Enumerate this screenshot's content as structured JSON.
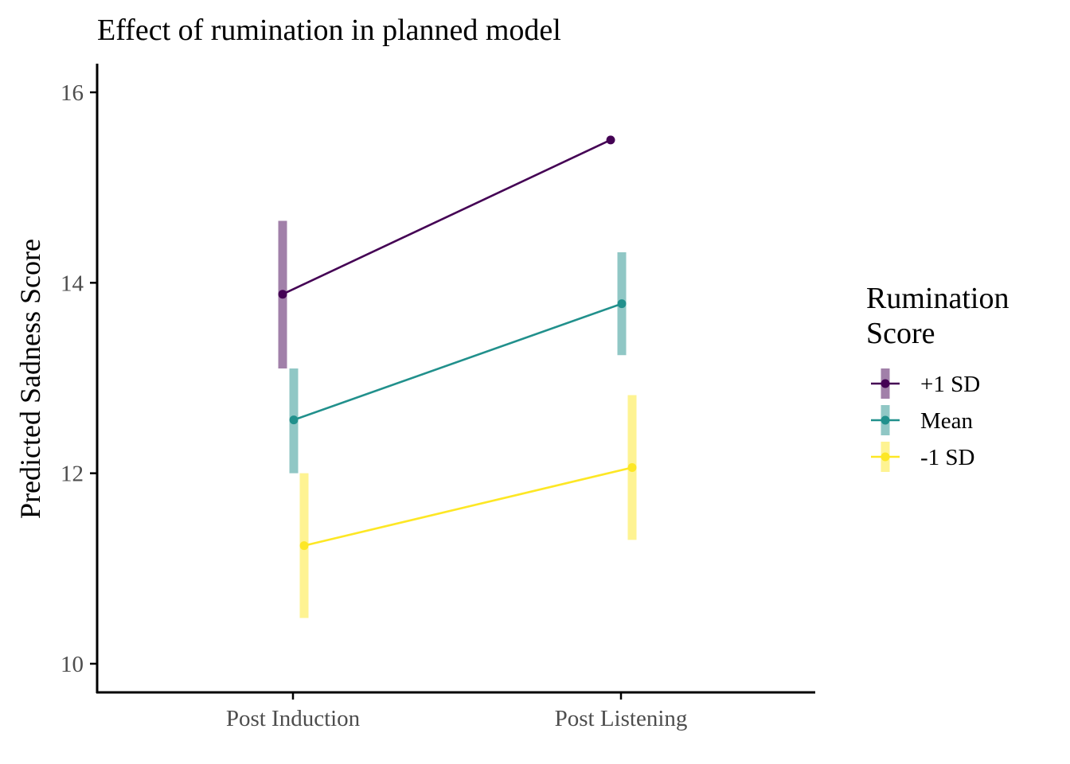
{
  "chart_data": {
    "type": "line",
    "title": "Effect of rumination in planned model",
    "xlabel": "",
    "ylabel": "Predicted Sadness Score",
    "categories": [
      "Post Induction",
      "Post Listening"
    ],
    "ylim": [
      9.7,
      16.3
    ],
    "yticks": [
      10,
      12,
      14,
      16
    ],
    "grid": false,
    "legend": {
      "title_lines": [
        "Rumination",
        "Score"
      ],
      "position": "right"
    },
    "series": [
      {
        "name": "+1 SD",
        "color": "#440154",
        "values": [
          13.88,
          15.5
        ],
        "ci_low": [
          13.1,
          null
        ],
        "ci_high": [
          14.65,
          null
        ]
      },
      {
        "name": "Mean",
        "color": "#21908C",
        "values": [
          12.56,
          13.78
        ],
        "ci_low": [
          12.0,
          13.24
        ],
        "ci_high": [
          13.1,
          14.32
        ]
      },
      {
        "name": "-1 SD",
        "color": "#FDE725",
        "values": [
          11.24,
          12.06
        ],
        "ci_low": [
          10.48,
          11.3
        ],
        "ci_high": [
          12.0,
          12.82
        ]
      }
    ]
  }
}
